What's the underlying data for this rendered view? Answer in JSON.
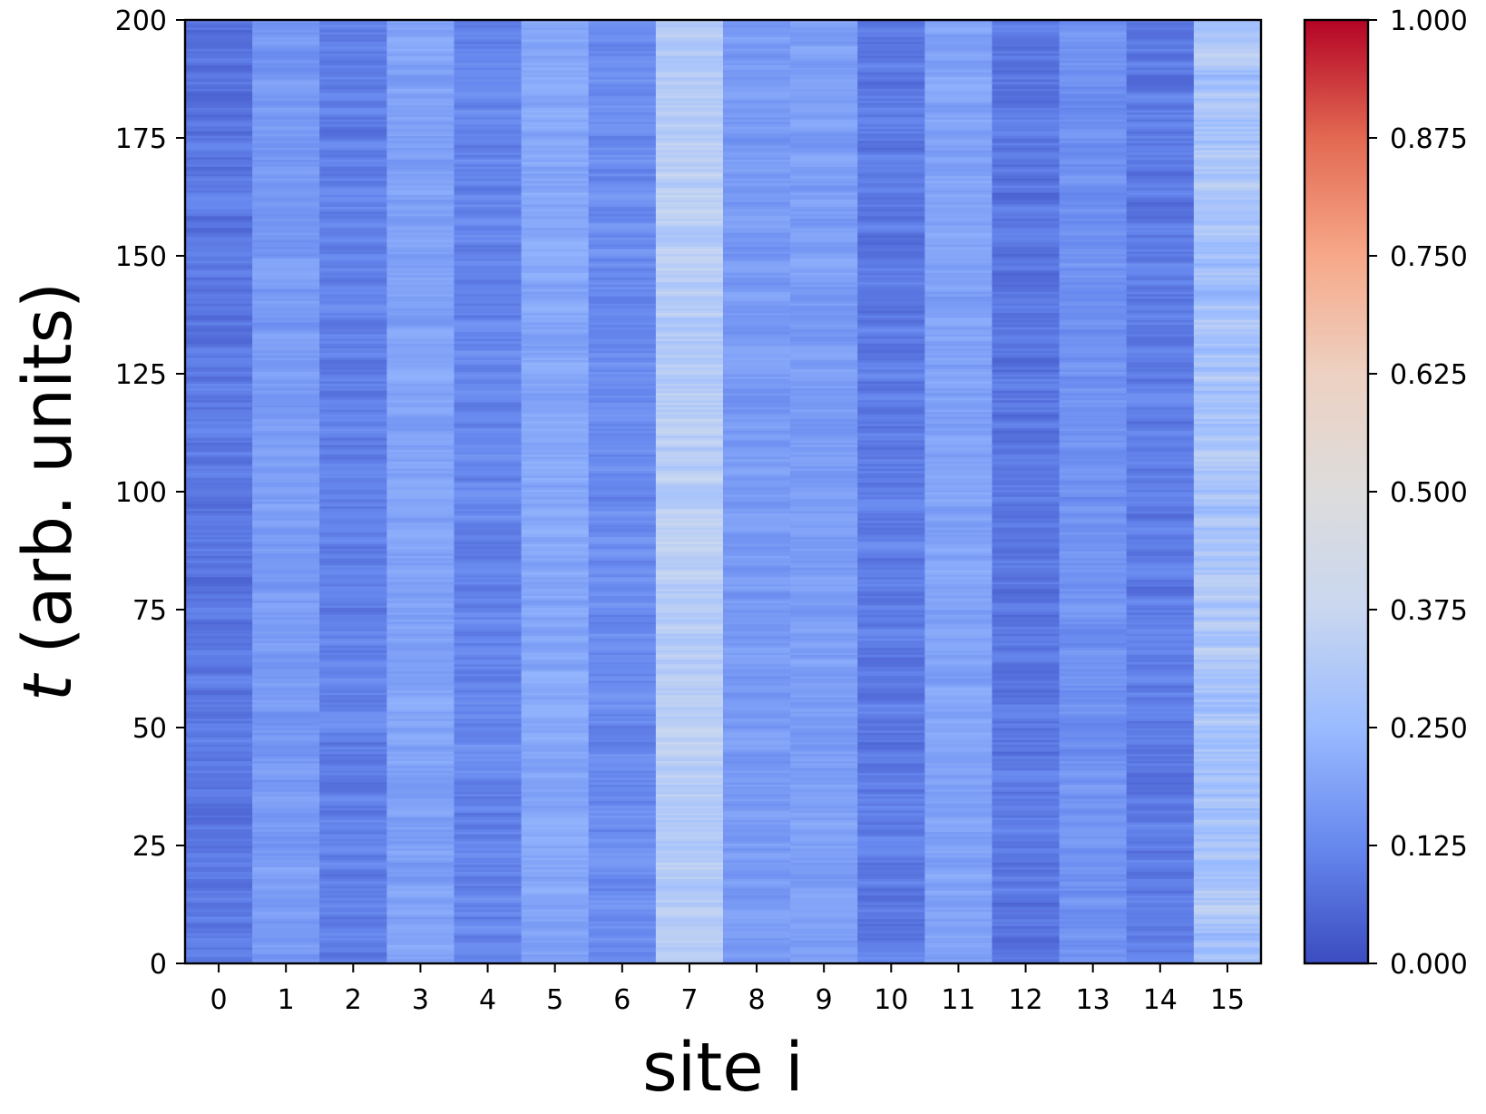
{
  "chart_data": {
    "type": "heatmap",
    "title": "",
    "xlabel": "site i",
    "ylabel_italic": "t",
    "ylabel_rest": " (arb. units)",
    "x_categories": [
      "0",
      "1",
      "2",
      "3",
      "4",
      "5",
      "6",
      "7",
      "8",
      "9",
      "10",
      "11",
      "12",
      "13",
      "14",
      "15"
    ],
    "y_ticks": [
      "0",
      "25",
      "50",
      "75",
      "100",
      "125",
      "150",
      "175",
      "200"
    ],
    "ylim": [
      0,
      200
    ],
    "colorbar": {
      "colormap": "coolwarm",
      "ticks": [
        "0.000",
        "0.125",
        "0.250",
        "0.375",
        "0.500",
        "0.625",
        "0.750",
        "0.875",
        "1.000"
      ],
      "range": [
        0,
        1
      ],
      "stops": [
        "#3b4cc0",
        "#6788ee",
        "#9abbff",
        "#c9d7f0",
        "#dddcdc",
        "#edd1c2",
        "#f7a889",
        "#e26952",
        "#b40426"
      ]
    },
    "site_mean_values": [
      0.09,
      0.17,
      0.11,
      0.19,
      0.12,
      0.2,
      0.13,
      0.33,
      0.17,
      0.18,
      0.1,
      0.19,
      0.09,
      0.15,
      0.1,
      0.29
    ],
    "site_value_spread": [
      0.06,
      0.05,
      0.06,
      0.05,
      0.06,
      0.05,
      0.06,
      0.08,
      0.05,
      0.05,
      0.06,
      0.05,
      0.06,
      0.05,
      0.06,
      0.1
    ],
    "time_steps": 400,
    "grid": false
  }
}
